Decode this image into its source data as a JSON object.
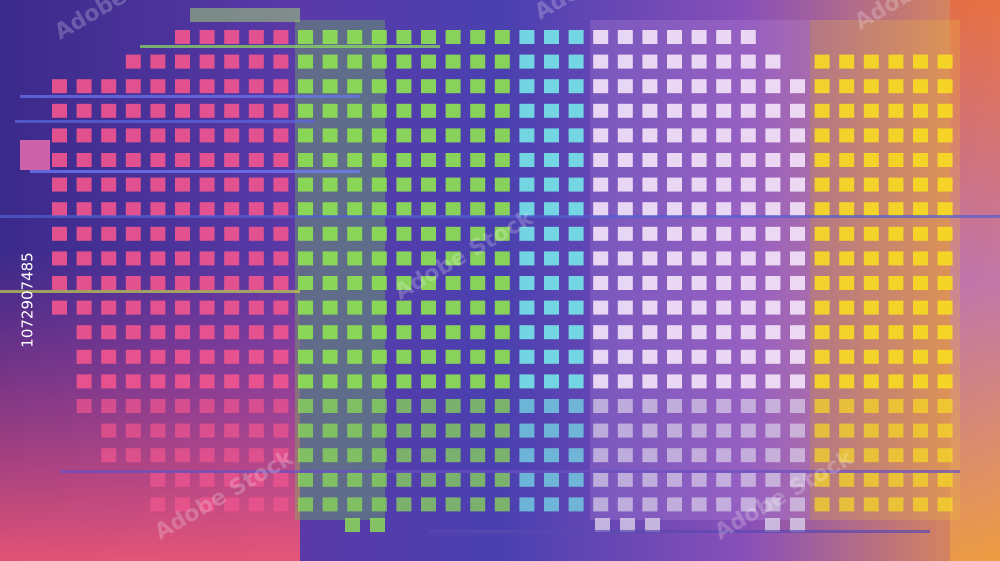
{
  "stock_id": "1072907485",
  "watermark": "Adobe Stock"
}
